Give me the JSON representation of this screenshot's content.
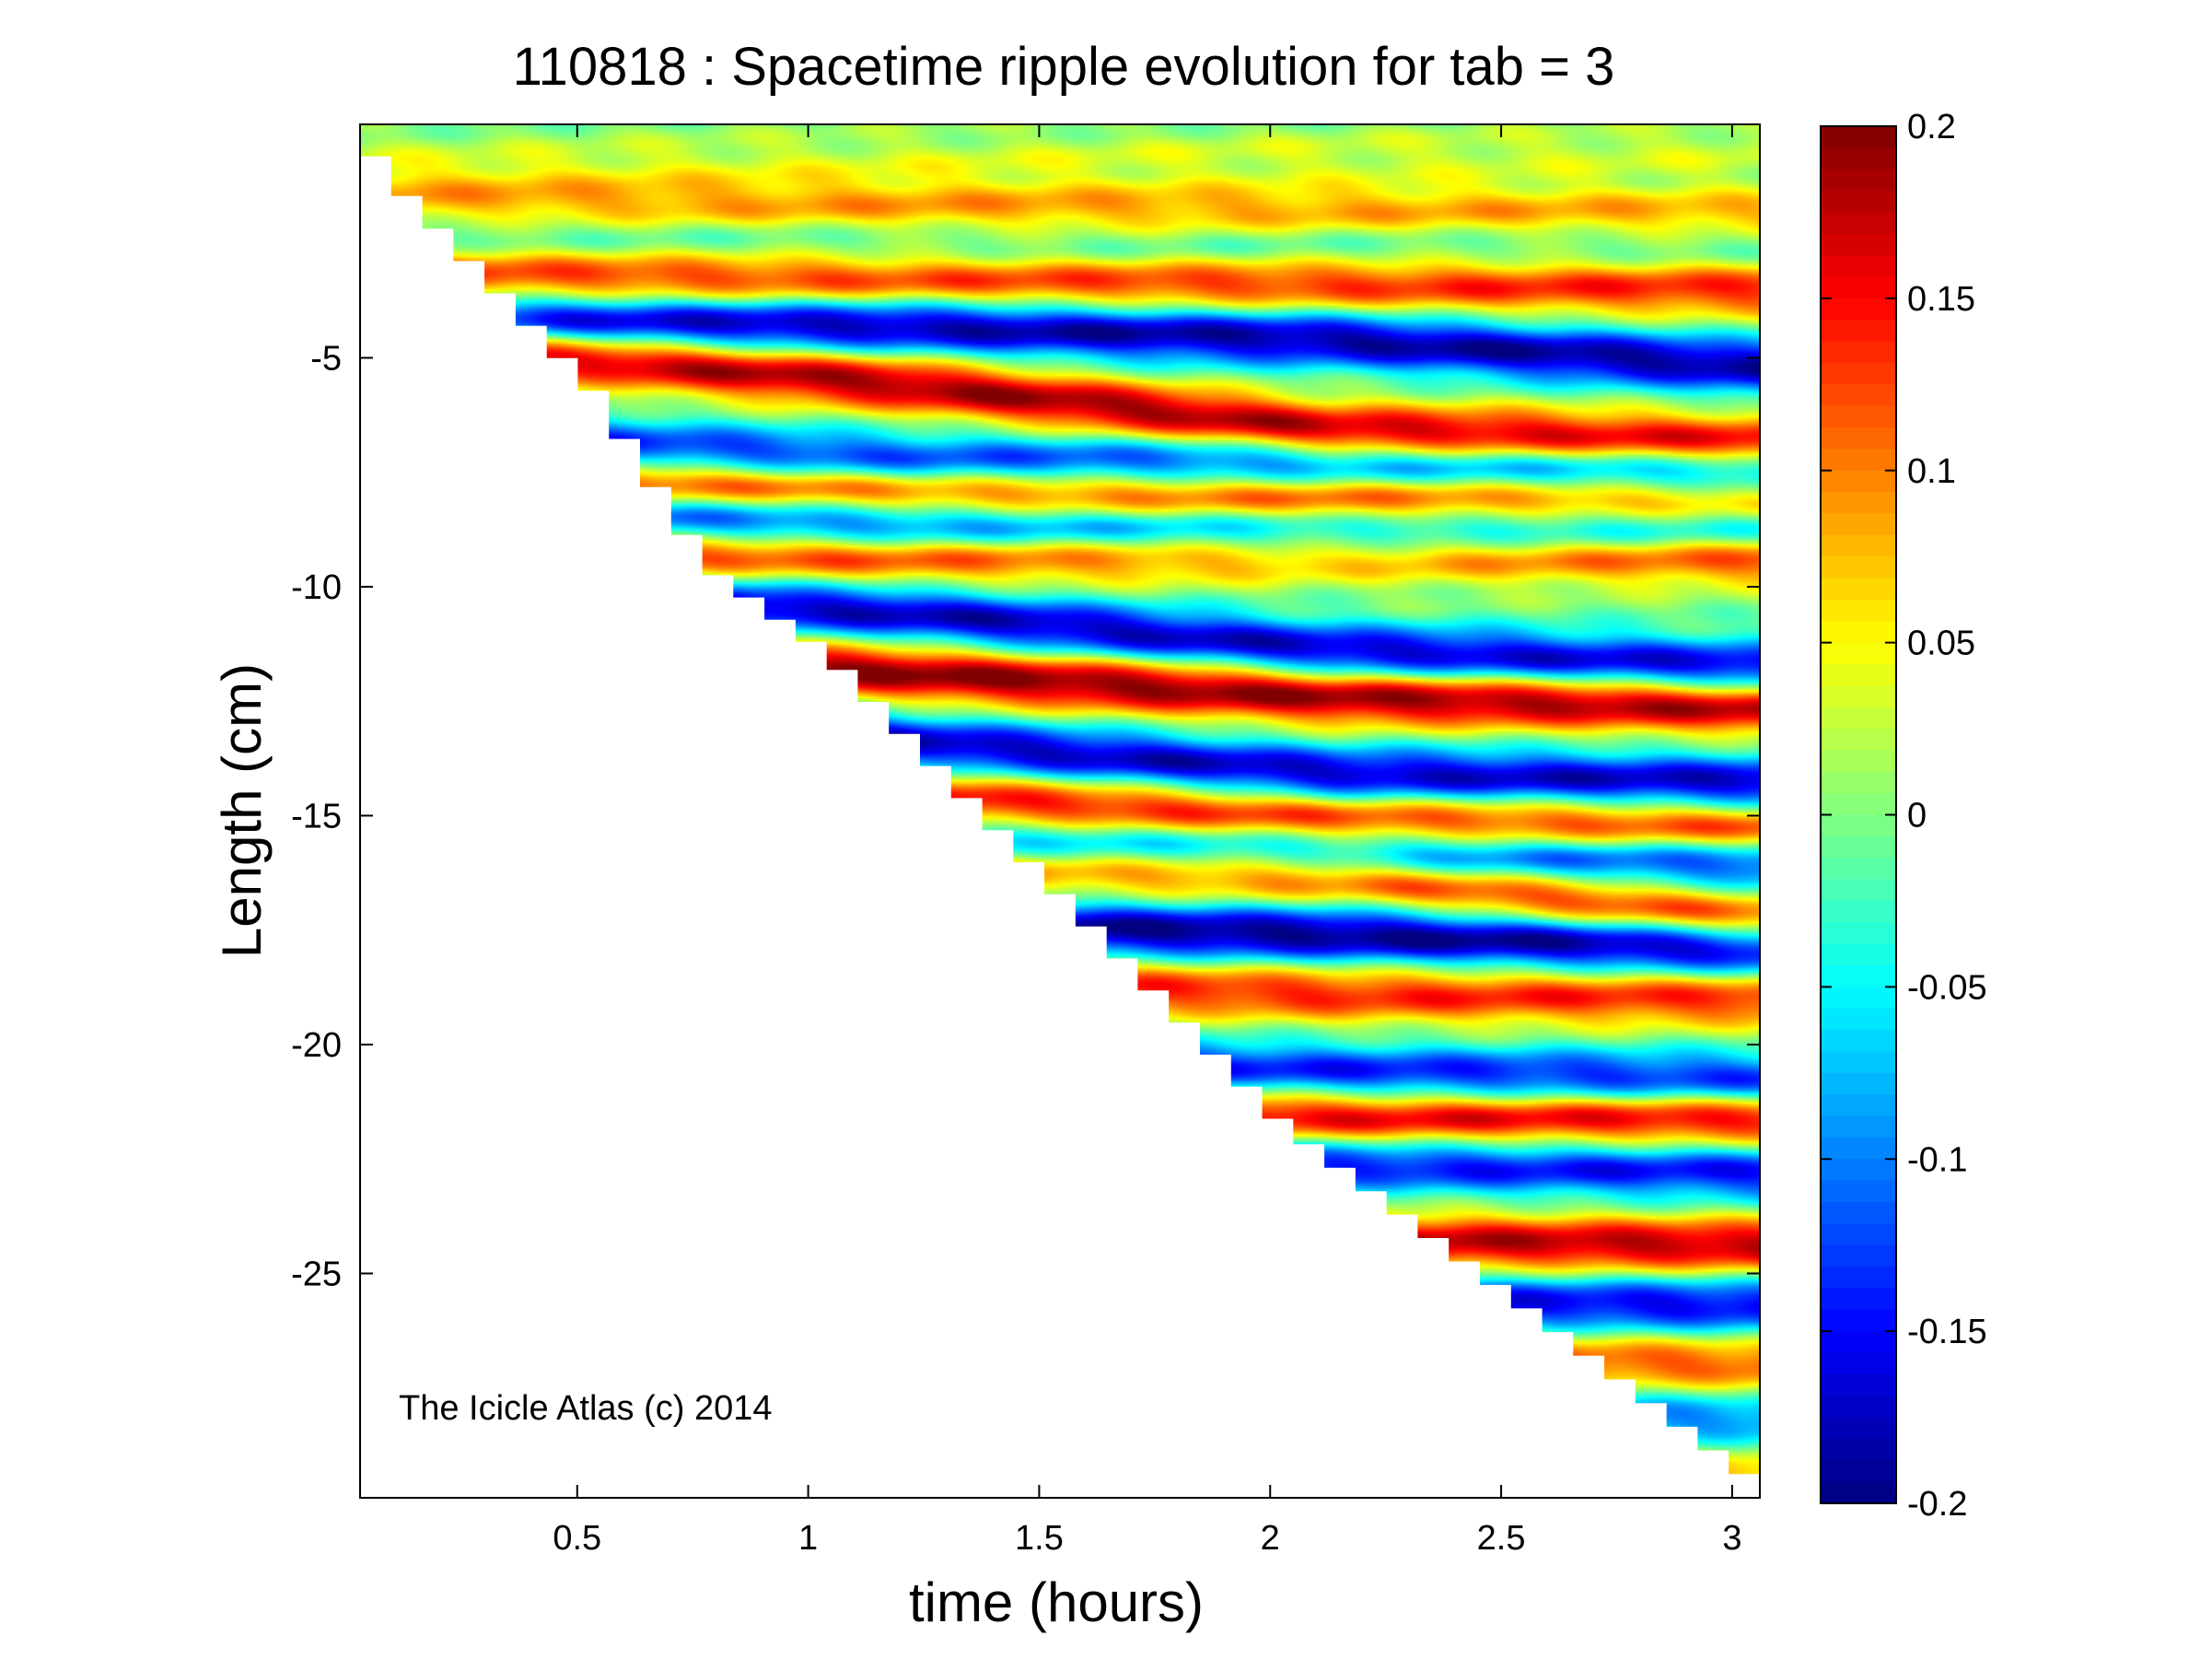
{
  "chart_data": {
    "type": "heatmap",
    "title": "110818 : Spacetime ripple evolution for tab = 3",
    "xlabel": "time (hours)",
    "ylabel": "Length (cm)",
    "xlim": [
      0.03,
      3.06
    ],
    "ylim": [
      -29.9,
      0.1
    ],
    "x_ticks": [
      0.5,
      1,
      1.5,
      2,
      2.5,
      3
    ],
    "x_tick_labels": [
      "0.5",
      "1",
      "1.5",
      "2",
      "2.5",
      "3"
    ],
    "y_ticks": [
      -5,
      -10,
      -15,
      -20,
      -25
    ],
    "y_tick_labels": [
      "-5",
      "-10",
      "-15",
      "-20",
      "-25"
    ],
    "colorbar": {
      "colormap": "jet",
      "clim": [
        -0.2,
        0.2
      ],
      "ticks": [
        0.2,
        0.15,
        0.1,
        0.05,
        0,
        -0.05,
        -0.1,
        -0.15,
        -0.2
      ],
      "tick_labels": [
        "0.2",
        "0.15",
        "0.1",
        "0.05",
        "0",
        "-0.05",
        "-0.1",
        "-0.15",
        "-0.2"
      ]
    },
    "grid": false,
    "growth_front": [
      [
        0.03,
        -0.6
      ],
      [
        0.1,
        -1.5
      ],
      [
        0.3,
        -3.6
      ],
      [
        0.5,
        -5.7
      ],
      [
        0.75,
        -9.6
      ],
      [
        1.0,
        -11.4
      ],
      [
        1.5,
        -16.6
      ],
      [
        2.0,
        -21.8
      ],
      [
        2.5,
        -25.6
      ],
      [
        3.06,
        -29.9
      ]
    ],
    "bands": [
      {
        "y": [
          -0.8,
          -0.7,
          -0.6,
          -0.5
        ],
        "amp": 0.03
      },
      {
        "y": [
          -1.6,
          -1.7,
          -1.8,
          -1.9
        ],
        "amp": 0.09
      },
      {
        "y": [
          -2.3,
          -2.6,
          -2.6,
          -2.5
        ],
        "amp": -0.04
      },
      {
        "y": [
          -3.2,
          -3.3,
          -3.4,
          -3.5
        ],
        "amp": 0.14
      },
      {
        "y": [
          -4.2,
          -4.3,
          -4.6,
          -5.2
        ],
        "amp": -0.19
      },
      {
        "y": [
          -4.8,
          -5.6,
          -6.6,
          -6.9
        ],
        "amp": 0.19
      },
      {
        "y": [
          -6.8,
          -7.3,
          -7.4,
          -7.5
        ],
        "amp": -0.16
      },
      {
        "y": [
          -7.6,
          -7.9,
          -8.0,
          -8.2
        ],
        "amp": 0.17
      },
      {
        "y": [
          -8.4,
          -8.7,
          -8.9,
          -8.7
        ],
        "amp": -0.17
      },
      {
        "y": [
          -9.2,
          -9.3,
          -9.2,
          -9.3
        ],
        "amp": 0.16
      },
      {
        "y": [
          -10.1,
          -10.6,
          -11.4,
          -11.8
        ],
        "amp": -0.18
      },
      {
        "y": [
          -11.4,
          -11.9,
          -12.4,
          -12.6
        ],
        "amp": 0.2
      },
      {
        "y": [
          -12.5,
          -13.4,
          -14.1,
          -14.3
        ],
        "amp": -0.18
      },
      {
        "y": [
          -13.6,
          -14.6,
          -15.1,
          -15.3
        ],
        "amp": 0.16
      },
      {
        "y": [
          -15.0,
          -15.6,
          -15.8,
          -16.0
        ],
        "amp": -0.15
      },
      {
        "y": [
          -15.8,
          -16.0,
          -16.3,
          -17.3
        ],
        "amp": 0.15
      },
      {
        "y": [
          -17.0,
          -17.4,
          -17.6,
          -17.9
        ],
        "amp": -0.2
      },
      {
        "y": [
          -18.5,
          -18.6,
          -18.9,
          -19.0
        ],
        "amp": 0.14
      },
      {
        "y": [
          -19.8,
          -20.3,
          -20.6,
          -20.8
        ],
        "amp": -0.15
      },
      {
        "y": [
          -21.0,
          -21.3,
          -21.6,
          -21.6
        ],
        "amp": 0.17
      },
      {
        "y": [
          -22.3,
          -22.5,
          -22.6,
          -22.8
        ],
        "amp": -0.15
      },
      {
        "y": [
          -23.5,
          -24.1,
          -24.3,
          -24.4
        ],
        "amp": 0.18
      },
      {
        "y": [
          -25.2,
          -25.4,
          -25.6,
          -25.7
        ],
        "amp": -0.16
      },
      {
        "y": [
          -26.3,
          -26.6,
          -26.8,
          -27.0
        ],
        "amp": 0.12
      },
      {
        "y": [
          -27.6,
          -27.8,
          -28.0,
          -28.2
        ],
        "amp": -0.1
      },
      {
        "y": [
          -29.0,
          -29.1,
          -29.2,
          -29.4
        ],
        "amp": 0.08
      }
    ]
  },
  "watermark": "The Icicle Atlas (c) 2014"
}
